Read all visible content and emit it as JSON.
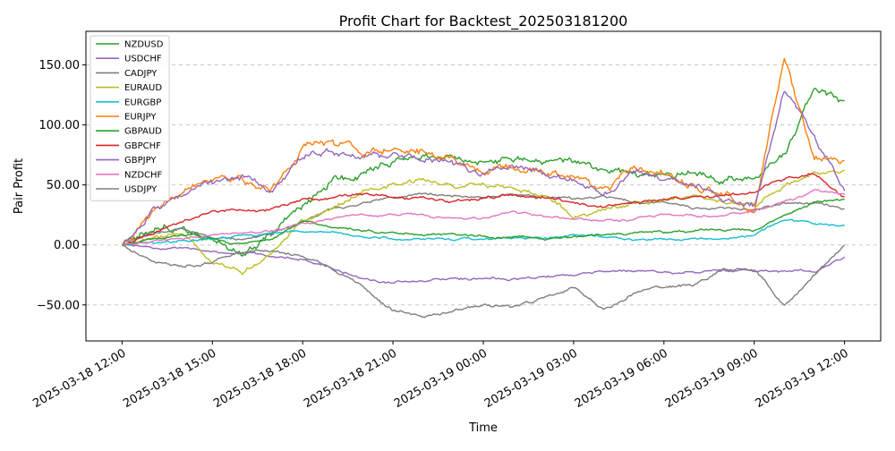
{
  "chart_data": {
    "type": "line",
    "title": "Profit Chart for Backtest_202503181200",
    "xlabel": "Time",
    "ylabel": "Pair Profit",
    "x_tick_labels": [
      "2025-03-18 12:00",
      "2025-03-18 15:00",
      "2025-03-18 18:00",
      "2025-03-18 21:00",
      "2025-03-19 00:00",
      "2025-03-19 03:00",
      "2025-03-19 06:00",
      "2025-03-19 09:00",
      "2025-03-19 12:00"
    ],
    "y_tick_labels": [
      "−50.00",
      "0.00",
      "50.00",
      "100.00",
      "150.00"
    ],
    "y_ticks": [
      -50,
      0,
      50,
      100,
      150
    ],
    "ylim": [
      -80,
      178
    ],
    "xlim_hours": [
      -1.2,
      25.2
    ],
    "grid": "horizontal dashed",
    "legend_position": "upper left",
    "x": [
      0,
      1,
      2,
      3,
      4,
      5,
      6,
      7,
      8,
      9,
      10,
      11,
      12,
      13,
      14,
      15,
      16,
      17,
      18,
      19,
      20,
      21,
      22,
      23,
      24
    ],
    "series": [
      {
        "name": "NZDUSD",
        "color": "#2ca02c",
        "values": [
          0,
          10,
          15,
          5,
          -10,
          10,
          30,
          55,
          60,
          70,
          75,
          72,
          68,
          70,
          70,
          68,
          62,
          62,
          58,
          62,
          55,
          55,
          75,
          130,
          120
        ]
      },
      {
        "name": "USDCHF",
        "color": "#9467bd",
        "values": [
          0,
          -2,
          -3,
          -5,
          -7,
          -8,
          -12,
          -20,
          -28,
          -32,
          -30,
          -29,
          -28,
          -28,
          -27,
          -25,
          -22,
          -22,
          -24,
          -22,
          -22,
          -22,
          -22,
          -22,
          -10
        ]
      },
      {
        "name": "CADJPY",
        "color": "#7f7f7f",
        "values": [
          0,
          10,
          15,
          5,
          5,
          10,
          20,
          30,
          35,
          40,
          42,
          40,
          40,
          42,
          40,
          38,
          40,
          35,
          35,
          30,
          30,
          30,
          35,
          35,
          30
        ]
      },
      {
        "name": "EURAUD",
        "color": "#bcbd22",
        "values": [
          0,
          5,
          10,
          -15,
          -25,
          -5,
          20,
          30,
          45,
          50,
          55,
          50,
          50,
          45,
          40,
          25,
          30,
          35,
          38,
          40,
          35,
          32,
          50,
          60,
          62
        ]
      },
      {
        "name": "EURGBP",
        "color": "#17becf",
        "values": [
          0,
          2,
          3,
          5,
          8,
          10,
          12,
          10,
          8,
          5,
          4,
          5,
          5,
          6,
          6,
          8,
          7,
          5,
          5,
          5,
          5,
          8,
          20,
          18,
          16
        ]
      },
      {
        "name": "EURJPY",
        "color": "#ff7f0e",
        "values": [
          0,
          30,
          40,
          55,
          55,
          45,
          80,
          85,
          75,
          80,
          75,
          70,
          60,
          65,
          65,
          55,
          45,
          65,
          60,
          50,
          40,
          30,
          160,
          70,
          70
        ]
      },
      {
        "name": "GBPAUD",
        "color": "#2ca02c",
        "values": [
          0,
          5,
          10,
          5,
          0,
          5,
          20,
          15,
          12,
          10,
          9,
          8,
          7,
          6,
          5,
          6,
          8,
          10,
          10,
          12,
          13,
          12,
          25,
          35,
          38
        ]
      },
      {
        "name": "GBPCHF",
        "color": "#d62728",
        "values": [
          0,
          10,
          20,
          28,
          28,
          30,
          38,
          40,
          42,
          40,
          38,
          36,
          38,
          42,
          40,
          36,
          32,
          35,
          38,
          40,
          40,
          45,
          55,
          60,
          40
        ]
      },
      {
        "name": "GBPJPY",
        "color": "#9467bd",
        "values": [
          0,
          30,
          42,
          50,
          55,
          45,
          75,
          80,
          72,
          75,
          72,
          68,
          58,
          65,
          62,
          50,
          40,
          62,
          58,
          50,
          40,
          30,
          130,
          90,
          45
        ]
      },
      {
        "name": "NZDCHF",
        "color": "#e377c2",
        "values": [
          0,
          3,
          5,
          8,
          10,
          12,
          18,
          22,
          25,
          26,
          24,
          22,
          22,
          28,
          24,
          22,
          20,
          22,
          26,
          25,
          25,
          28,
          35,
          45,
          42
        ]
      },
      {
        "name": "USDJPY",
        "color": "#7f7f7f",
        "values": [
          0,
          -12,
          -18,
          -15,
          -5,
          -5,
          -10,
          -20,
          -35,
          -55,
          -60,
          -55,
          -50,
          -52,
          -45,
          -35,
          -55,
          -40,
          -35,
          -35,
          -20,
          -20,
          -50,
          -25,
          0
        ]
      }
    ]
  }
}
